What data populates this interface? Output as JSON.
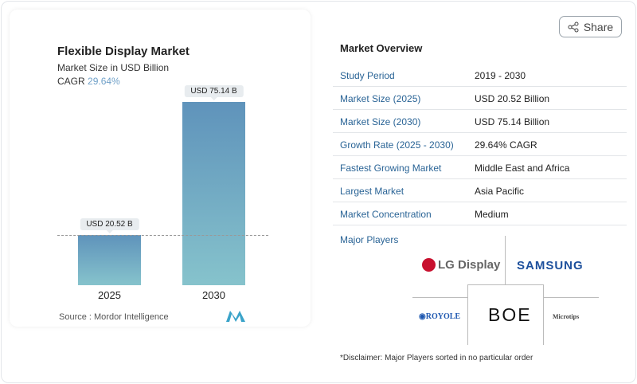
{
  "share_label": "Share",
  "chart": {
    "title": "Flexible Display Market",
    "subtitle": "Market Size in USD Billion",
    "cagr_label": "CAGR",
    "cagr_value": "29.64%",
    "source": "Source :  Mordor Intelligence"
  },
  "chart_data": {
    "type": "bar",
    "title": "Flexible Display Market",
    "subtitle": "Market Size in USD Billion",
    "categories": [
      "2025",
      "2030"
    ],
    "values": [
      20.52,
      75.14
    ],
    "data_labels": [
      "USD 20.52 B",
      "USD 75.14 B"
    ],
    "ylim": [
      0,
      75.14
    ],
    "colors": {
      "bar_top": "#5f93bb",
      "bar_bottom": "#86c3cc"
    }
  },
  "overview": {
    "title": "Market Overview",
    "rows": [
      {
        "k": "Study Period",
        "v": "2019 - 2030"
      },
      {
        "k": "Market Size (2025)",
        "v": "USD 20.52 Billion"
      },
      {
        "k": "Market Size (2030)",
        "v": "USD 75.14 Billion"
      },
      {
        "k": "Growth Rate (2025 - 2030)",
        "v": "29.64% CAGR"
      },
      {
        "k": "Fastest Growing Market",
        "v": "Middle East and Africa"
      },
      {
        "k": "Largest Market",
        "v": "Asia Pacific"
      },
      {
        "k": "Market Concentration",
        "v": "Medium"
      }
    ],
    "major_players_label": "Major Players",
    "players": [
      "LG Display",
      "SAMSUNG",
      "ROYOLE",
      "BOE",
      "Microtips"
    ],
    "disclaimer": "*Disclaimer: Major Players sorted in no particular order"
  }
}
